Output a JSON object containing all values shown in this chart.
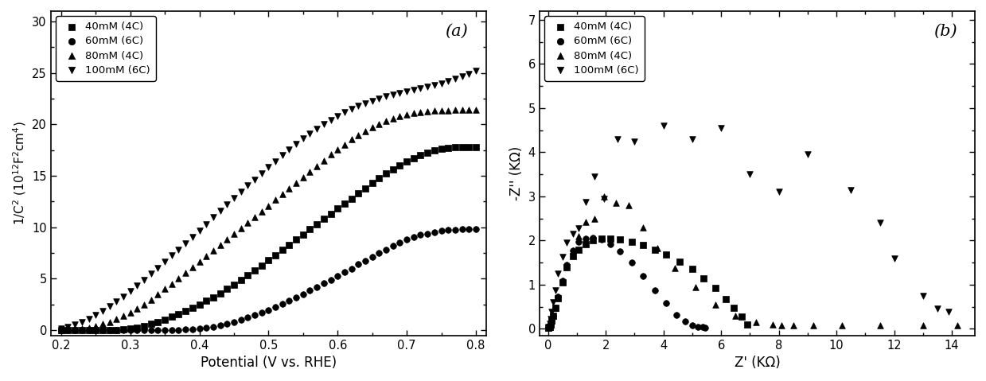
{
  "panel_a": {
    "title": "(a)",
    "xlabel": "Potential (V vs. RHE)",
    "ylabel": "1/C$^2$ (10$^{12}$F$^2$cm$^4$)",
    "xlim": [
      0.185,
      0.815
    ],
    "ylim": [
      -0.5,
      31
    ],
    "xticks": [
      0.2,
      0.3,
      0.4,
      0.5,
      0.6,
      0.7,
      0.8
    ],
    "yticks": [
      0,
      5,
      10,
      15,
      20,
      25,
      30
    ],
    "series": [
      {
        "label": "40mM (4C)",
        "marker": "s",
        "x": [
          0.2,
          0.21,
          0.22,
          0.23,
          0.24,
          0.25,
          0.26,
          0.27,
          0.28,
          0.29,
          0.3,
          0.31,
          0.32,
          0.33,
          0.34,
          0.35,
          0.36,
          0.37,
          0.38,
          0.39,
          0.4,
          0.41,
          0.42,
          0.43,
          0.44,
          0.45,
          0.46,
          0.47,
          0.48,
          0.49,
          0.5,
          0.51,
          0.52,
          0.53,
          0.54,
          0.55,
          0.56,
          0.57,
          0.58,
          0.59,
          0.6,
          0.61,
          0.62,
          0.63,
          0.64,
          0.65,
          0.66,
          0.67,
          0.68,
          0.69,
          0.7,
          0.71,
          0.72,
          0.73,
          0.74,
          0.75,
          0.76,
          0.77,
          0.78,
          0.79,
          0.8
        ],
        "y": [
          0.05,
          0.05,
          0.05,
          0.05,
          0.05,
          0.05,
          0.05,
          0.05,
          0.05,
          0.1,
          0.15,
          0.25,
          0.4,
          0.6,
          0.8,
          1.05,
          1.3,
          1.55,
          1.85,
          2.15,
          2.5,
          2.85,
          3.2,
          3.6,
          4.0,
          4.45,
          4.9,
          5.35,
          5.8,
          6.3,
          6.8,
          7.3,
          7.8,
          8.3,
          8.8,
          9.3,
          9.8,
          10.3,
          10.8,
          11.3,
          11.8,
          12.3,
          12.8,
          13.3,
          13.8,
          14.3,
          14.8,
          15.2,
          15.6,
          16.0,
          16.4,
          16.7,
          17.0,
          17.25,
          17.45,
          17.6,
          17.7,
          17.75,
          17.8,
          17.8,
          17.8
        ]
      },
      {
        "label": "60mM (6C)",
        "marker": "o",
        "x": [
          0.2,
          0.21,
          0.22,
          0.23,
          0.24,
          0.25,
          0.26,
          0.27,
          0.28,
          0.29,
          0.3,
          0.31,
          0.32,
          0.33,
          0.34,
          0.35,
          0.36,
          0.37,
          0.38,
          0.39,
          0.4,
          0.41,
          0.42,
          0.43,
          0.44,
          0.45,
          0.46,
          0.47,
          0.48,
          0.49,
          0.5,
          0.51,
          0.52,
          0.53,
          0.54,
          0.55,
          0.56,
          0.57,
          0.58,
          0.59,
          0.6,
          0.61,
          0.62,
          0.63,
          0.64,
          0.65,
          0.66,
          0.67,
          0.68,
          0.69,
          0.7,
          0.71,
          0.72,
          0.73,
          0.74,
          0.75,
          0.76,
          0.77,
          0.78,
          0.79,
          0.8
        ],
        "y": [
          0.02,
          0.02,
          0.02,
          0.02,
          0.02,
          0.02,
          0.02,
          0.02,
          0.02,
          0.02,
          0.02,
          0.02,
          0.02,
          0.02,
          0.02,
          0.02,
          0.03,
          0.05,
          0.08,
          0.12,
          0.18,
          0.25,
          0.35,
          0.48,
          0.62,
          0.8,
          1.0,
          1.22,
          1.45,
          1.7,
          1.95,
          2.25,
          2.55,
          2.85,
          3.15,
          3.5,
          3.85,
          4.2,
          4.55,
          4.9,
          5.3,
          5.65,
          6.0,
          6.4,
          6.75,
          7.1,
          7.5,
          7.85,
          8.2,
          8.5,
          8.8,
          9.05,
          9.25,
          9.4,
          9.55,
          9.65,
          9.72,
          9.76,
          9.79,
          9.8,
          9.8
        ]
      },
      {
        "label": "80mM (4C)",
        "marker": "^",
        "x": [
          0.2,
          0.21,
          0.22,
          0.23,
          0.24,
          0.25,
          0.26,
          0.27,
          0.28,
          0.29,
          0.3,
          0.31,
          0.32,
          0.33,
          0.34,
          0.35,
          0.36,
          0.37,
          0.38,
          0.39,
          0.4,
          0.41,
          0.42,
          0.43,
          0.44,
          0.45,
          0.46,
          0.47,
          0.48,
          0.49,
          0.5,
          0.51,
          0.52,
          0.53,
          0.54,
          0.55,
          0.56,
          0.57,
          0.58,
          0.59,
          0.6,
          0.61,
          0.62,
          0.63,
          0.64,
          0.65,
          0.66,
          0.67,
          0.68,
          0.69,
          0.7,
          0.71,
          0.72,
          0.73,
          0.74,
          0.75,
          0.76,
          0.77,
          0.78,
          0.79,
          0.8
        ],
        "y": [
          0.05,
          0.08,
          0.12,
          0.18,
          0.28,
          0.42,
          0.6,
          0.82,
          1.08,
          1.38,
          1.72,
          2.1,
          2.52,
          2.98,
          3.48,
          4.0,
          4.52,
          5.05,
          5.58,
          6.12,
          6.65,
          7.18,
          7.72,
          8.25,
          8.8,
          9.35,
          9.9,
          10.45,
          11.0,
          11.55,
          12.1,
          12.65,
          13.2,
          13.75,
          14.3,
          14.85,
          15.4,
          15.95,
          16.5,
          17.05,
          17.55,
          18.05,
          18.52,
          18.95,
          19.35,
          19.72,
          20.05,
          20.35,
          20.6,
          20.8,
          20.98,
          21.1,
          21.2,
          21.28,
          21.32,
          21.35,
          21.37,
          21.38,
          21.39,
          21.4,
          21.4
        ]
      },
      {
        "label": "100mM (6C)",
        "marker": "v",
        "x": [
          0.2,
          0.21,
          0.22,
          0.23,
          0.24,
          0.25,
          0.26,
          0.27,
          0.28,
          0.29,
          0.3,
          0.31,
          0.32,
          0.33,
          0.34,
          0.35,
          0.36,
          0.37,
          0.38,
          0.39,
          0.4,
          0.41,
          0.42,
          0.43,
          0.44,
          0.45,
          0.46,
          0.47,
          0.48,
          0.49,
          0.5,
          0.51,
          0.52,
          0.53,
          0.54,
          0.55,
          0.56,
          0.57,
          0.58,
          0.59,
          0.6,
          0.61,
          0.62,
          0.63,
          0.64,
          0.65,
          0.66,
          0.67,
          0.68,
          0.69,
          0.7,
          0.71,
          0.72,
          0.73,
          0.74,
          0.75,
          0.76,
          0.77,
          0.78,
          0.79,
          0.8
        ],
        "y": [
          0.2,
          0.35,
          0.55,
          0.8,
          1.1,
          1.45,
          1.85,
          2.3,
          2.78,
          3.28,
          3.8,
          4.35,
          4.9,
          5.48,
          6.05,
          6.65,
          7.25,
          7.85,
          8.45,
          9.08,
          9.7,
          10.32,
          10.95,
          11.58,
          12.2,
          12.82,
          13.45,
          14.05,
          14.65,
          15.25,
          15.85,
          16.42,
          17.0,
          17.55,
          18.08,
          18.6,
          19.08,
          19.55,
          20.0,
          20.42,
          20.8,
          21.15,
          21.48,
          21.78,
          22.05,
          22.3,
          22.52,
          22.72,
          22.9,
          23.06,
          23.2,
          23.35,
          23.5,
          23.65,
          23.8,
          23.98,
          24.18,
          24.4,
          24.65,
          24.9,
          25.18
        ]
      }
    ]
  },
  "panel_b": {
    "title": "(b)",
    "xlabel": "Z' (KΩ)",
    "ylabel": "-Z'' (KΩ)",
    "xlim": [
      -0.3,
      14.8
    ],
    "ylim": [
      -0.15,
      7.2
    ],
    "xticks": [
      0,
      2,
      4,
      6,
      8,
      10,
      12,
      14
    ],
    "yticks": [
      0,
      1,
      2,
      3,
      4,
      5,
      6,
      7
    ],
    "series": [
      {
        "label": "40mM (4C)",
        "marker": "s",
        "x": [
          0.02,
          0.05,
          0.08,
          0.12,
          0.18,
          0.25,
          0.35,
          0.5,
          0.65,
          0.85,
          1.05,
          1.3,
          1.55,
          1.85,
          2.15,
          2.5,
          2.9,
          3.3,
          3.7,
          4.1,
          4.55,
          5.0,
          5.4,
          5.8,
          6.15,
          6.45,
          6.7,
          6.9
        ],
        "y": [
          0.02,
          0.05,
          0.1,
          0.18,
          0.3,
          0.48,
          0.7,
          1.05,
          1.4,
          1.65,
          1.8,
          1.92,
          2.0,
          2.05,
          2.05,
          2.02,
          1.98,
          1.9,
          1.8,
          1.68,
          1.52,
          1.35,
          1.15,
          0.92,
          0.68,
          0.48,
          0.28,
          0.1
        ]
      },
      {
        "label": "60mM (6C)",
        "marker": "o",
        "x": [
          0.02,
          0.05,
          0.08,
          0.12,
          0.18,
          0.25,
          0.35,
          0.5,
          0.65,
          0.85,
          1.05,
          1.3,
          1.55,
          1.85,
          2.15,
          2.5,
          2.9,
          3.3,
          3.7,
          4.1,
          4.45,
          4.75,
          5.0,
          5.2,
          5.35,
          5.45
        ],
        "y": [
          0.02,
          0.05,
          0.1,
          0.18,
          0.3,
          0.48,
          0.72,
          1.08,
          1.45,
          1.78,
          1.98,
          2.05,
          2.06,
          2.02,
          1.92,
          1.75,
          1.5,
          1.2,
          0.88,
          0.58,
          0.32,
          0.16,
          0.08,
          0.05,
          0.04,
          0.03
        ]
      },
      {
        "label": "80mM (4C)",
        "marker": "^",
        "x": [
          0.02,
          0.05,
          0.08,
          0.12,
          0.18,
          0.25,
          0.35,
          0.5,
          0.65,
          0.85,
          1.05,
          1.3,
          1.6,
          1.95,
          2.35,
          2.8,
          3.3,
          3.8,
          4.4,
          5.1,
          5.8,
          6.5,
          7.2,
          7.8,
          8.1,
          8.5,
          9.2,
          10.2,
          11.5,
          13.0,
          14.2
        ],
        "y": [
          0.02,
          0.05,
          0.1,
          0.18,
          0.3,
          0.48,
          0.72,
          1.08,
          1.45,
          1.78,
          2.1,
          2.42,
          2.5,
          3.0,
          2.85,
          2.8,
          2.3,
          1.82,
          1.38,
          0.95,
          0.55,
          0.3,
          0.15,
          0.1,
          0.08,
          0.08,
          0.08,
          0.08,
          0.08,
          0.08,
          0.08
        ]
      },
      {
        "label": "100mM (6C)",
        "marker": "v",
        "x": [
          0.02,
          0.05,
          0.08,
          0.12,
          0.18,
          0.25,
          0.35,
          0.5,
          0.65,
          0.85,
          1.05,
          1.3,
          1.6,
          1.95,
          2.4,
          3.0,
          4.0,
          5.0,
          6.0,
          7.0,
          8.0,
          9.0,
          10.5,
          11.5,
          12.0,
          13.0,
          13.5,
          13.9
        ],
        "y": [
          0.05,
          0.12,
          0.22,
          0.38,
          0.6,
          0.88,
          1.25,
          1.62,
          1.95,
          2.15,
          2.28,
          2.88,
          3.45,
          2.95,
          4.3,
          4.25,
          4.6,
          4.3,
          4.55,
          3.5,
          3.1,
          3.95,
          3.15,
          2.4,
          1.6,
          0.75,
          0.45,
          0.38
        ]
      }
    ]
  },
  "color": "black",
  "markersize": 5.5
}
